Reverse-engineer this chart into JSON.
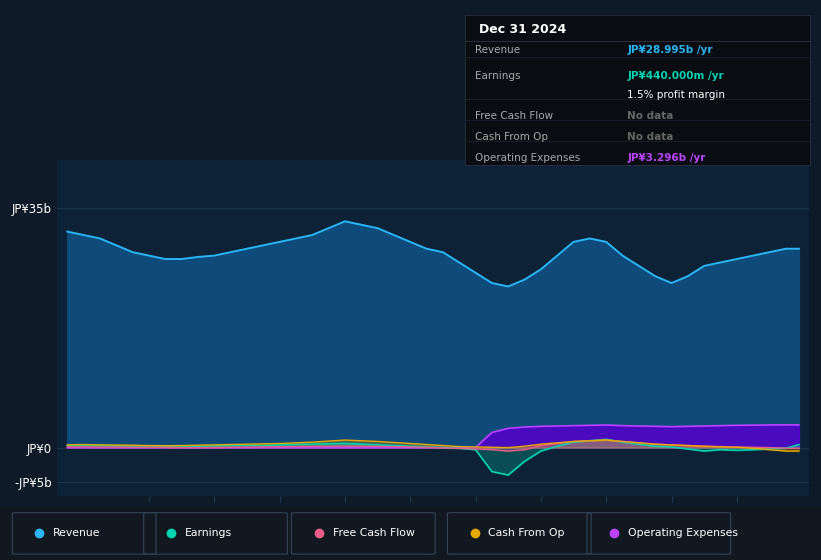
{
  "bg_color": "#0e1a27",
  "plot_bg_color": "#0d2137",
  "grid_color": "#1e3a52",
  "series": {
    "years": [
      2013.75,
      2014.0,
      2014.25,
      2014.5,
      2014.75,
      2015.0,
      2015.25,
      2015.5,
      2015.75,
      2016.0,
      2016.25,
      2016.5,
      2016.75,
      2017.0,
      2017.25,
      2017.5,
      2017.75,
      2018.0,
      2018.25,
      2018.5,
      2018.75,
      2019.0,
      2019.25,
      2019.5,
      2019.75,
      2020.0,
      2020.25,
      2020.5,
      2020.75,
      2021.0,
      2021.25,
      2021.5,
      2021.75,
      2022.0,
      2022.25,
      2022.5,
      2022.75,
      2023.0,
      2023.25,
      2023.5,
      2023.75,
      2024.0,
      2024.25,
      2024.5,
      2024.75,
      2024.95
    ],
    "revenue": [
      31.5,
      31.0,
      30.5,
      29.5,
      28.5,
      28.0,
      27.5,
      27.5,
      27.8,
      28.0,
      28.5,
      29.0,
      29.5,
      30.0,
      30.5,
      31.0,
      32.0,
      33.0,
      32.5,
      32.0,
      31.0,
      30.0,
      29.0,
      28.5,
      27.0,
      25.5,
      24.0,
      23.5,
      24.5,
      26.0,
      28.0,
      30.0,
      30.5,
      30.0,
      28.0,
      26.5,
      25.0,
      24.0,
      25.0,
      26.5,
      27.0,
      27.5,
      28.0,
      28.5,
      29.0,
      29.0
    ],
    "earnings": [
      0.3,
      0.35,
      0.3,
      0.25,
      0.2,
      0.15,
      0.1,
      0.15,
      0.2,
      0.25,
      0.3,
      0.35,
      0.3,
      0.4,
      0.45,
      0.5,
      0.55,
      0.6,
      0.5,
      0.4,
      0.3,
      0.2,
      0.1,
      0.0,
      -0.1,
      -0.3,
      -3.5,
      -4.0,
      -2.0,
      -0.5,
      0.2,
      0.8,
      1.0,
      1.2,
      0.8,
      0.5,
      0.2,
      0.1,
      -0.2,
      -0.5,
      -0.3,
      -0.4,
      -0.3,
      -0.2,
      -0.1,
      0.44
    ],
    "free_cash_flow": [
      0.1,
      0.1,
      0.08,
      0.08,
      0.05,
      0.05,
      0.04,
      0.0,
      0.0,
      0.02,
      0.05,
      0.08,
      0.1,
      0.12,
      0.15,
      0.18,
      0.2,
      0.22,
      0.2,
      0.18,
      0.15,
      0.1,
      0.05,
      -0.05,
      -0.1,
      -0.2,
      -0.3,
      -0.5,
      -0.3,
      0.3,
      0.6,
      0.9,
      1.0,
      1.1,
      0.9,
      0.7,
      0.5,
      0.4,
      0.3,
      0.2,
      0.15,
      0.1,
      0.05,
      0.0,
      -0.1,
      -0.1
    ],
    "cash_from_op": [
      0.4,
      0.45,
      0.4,
      0.38,
      0.35,
      0.3,
      0.28,
      0.3,
      0.35,
      0.4,
      0.45,
      0.5,
      0.55,
      0.6,
      0.7,
      0.8,
      0.95,
      1.1,
      1.0,
      0.9,
      0.75,
      0.6,
      0.45,
      0.3,
      0.15,
      0.1,
      0.05,
      0.0,
      0.2,
      0.5,
      0.7,
      0.9,
      1.0,
      1.1,
      0.9,
      0.7,
      0.5,
      0.4,
      0.3,
      0.2,
      0.1,
      0.05,
      -0.1,
      -0.3,
      -0.5,
      -0.5
    ],
    "op_expenses": [
      0.0,
      0.0,
      0.0,
      0.0,
      0.0,
      0.0,
      0.0,
      0.0,
      0.0,
      0.0,
      0.0,
      0.0,
      0.0,
      0.0,
      0.0,
      0.0,
      0.0,
      0.0,
      0.0,
      0.0,
      0.0,
      0.0,
      0.0,
      0.0,
      0.0,
      0.0,
      2.2,
      2.8,
      3.0,
      3.1,
      3.15,
      3.2,
      3.25,
      3.3,
      3.2,
      3.15,
      3.1,
      3.05,
      3.1,
      3.15,
      3.2,
      3.25,
      3.28,
      3.3,
      3.32,
      3.296
    ]
  },
  "scale": 1000000000.0,
  "ylim_b": [
    -7,
    42
  ],
  "ytick_vals": [
    -5,
    0,
    35
  ],
  "ytick_labels": [
    "-JP¥5b",
    "JP¥0",
    "JP¥35b"
  ],
  "xticks": [
    2015,
    2016,
    2017,
    2018,
    2019,
    2020,
    2021,
    2022,
    2023,
    2024
  ],
  "xlim": [
    2013.6,
    2025.1
  ],
  "colors": {
    "revenue_line": "#2ab5f5",
    "revenue_fill": "#0e4a7a",
    "earnings_line": "#00d4b0",
    "earnings_fill": "#00d4b040",
    "fcf_line": "#e85d8a",
    "fcf_fill": "#e85d8a30",
    "cashop_line": "#e8a800",
    "cashop_fill": "#e8a80030",
    "opex_line": "#bb44ff",
    "opex_fill": "#5500cc"
  },
  "info_box": {
    "title": "Dec 31 2024",
    "rows": [
      {
        "label": "Revenue",
        "value": "JP¥28.995b /yr",
        "value_color": "#2ab5f5"
      },
      {
        "label": "Earnings",
        "value": "JP¥440.000m /yr",
        "value_color": "#00d4b0"
      },
      {
        "label": "",
        "value": "1.5% profit margin",
        "value_color": "#ffffff"
      },
      {
        "label": "Free Cash Flow",
        "value": "No data",
        "value_color": "#666666"
      },
      {
        "label": "Cash From Op",
        "value": "No data",
        "value_color": "#666666"
      },
      {
        "label": "Operating Expenses",
        "value": "JP¥3.296b /yr",
        "value_color": "#bb44ff"
      }
    ]
  },
  "legend": [
    {
      "label": "Revenue",
      "color": "#2ab5f5"
    },
    {
      "label": "Earnings",
      "color": "#00d4b0"
    },
    {
      "label": "Free Cash Flow",
      "color": "#e85d8a"
    },
    {
      "label": "Cash From Op",
      "color": "#e8a800"
    },
    {
      "label": "Operating Expenses",
      "color": "#bb44ff"
    }
  ]
}
